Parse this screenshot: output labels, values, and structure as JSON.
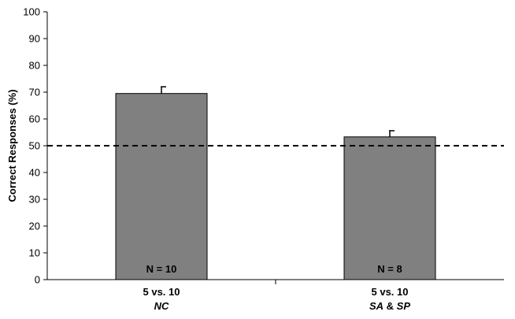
{
  "chart_data": {
    "type": "bar",
    "categories": [
      "5 vs. 10",
      "5 vs. 10"
    ],
    "category_sublabels": [
      [
        {
          "text": "NC",
          "italic": true
        }
      ],
      [
        {
          "text": "SA",
          "italic": true
        },
        {
          "text": " & ",
          "italic": false
        },
        {
          "text": "SP",
          "italic": true
        }
      ]
    ],
    "values": [
      69.5,
      53.3
    ],
    "errors": [
      2.5,
      2.3
    ],
    "bar_annotations": [
      "N = 10",
      "N = 8"
    ],
    "ylabel": "Correct Responses (%)",
    "xlabel": "",
    "ylim": [
      0,
      100
    ],
    "yticks": [
      0,
      10,
      20,
      30,
      40,
      50,
      60,
      70,
      80,
      90,
      100
    ],
    "reference_line": {
      "value": 50,
      "style": "dashed"
    },
    "grid": false,
    "bar_color": "#808080"
  }
}
